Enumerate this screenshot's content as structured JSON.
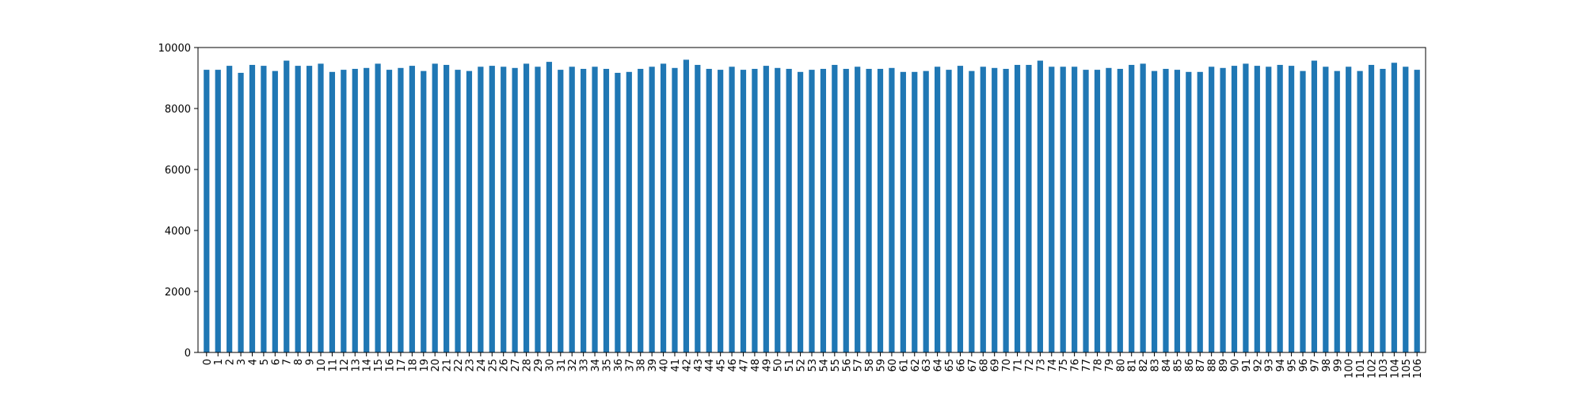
{
  "chart_data": {
    "type": "bar",
    "categories": [
      "0",
      "1",
      "2",
      "3",
      "4",
      "5",
      "6",
      "7",
      "8",
      "9",
      "10",
      "11",
      "12",
      "13",
      "14",
      "15",
      "16",
      "17",
      "18",
      "19",
      "20",
      "21",
      "22",
      "23",
      "24",
      "25",
      "26",
      "27",
      "28",
      "29",
      "30",
      "31",
      "32",
      "33",
      "34",
      "35",
      "36",
      "37",
      "38",
      "39",
      "40",
      "41",
      "42",
      "43",
      "44",
      "45",
      "46",
      "47",
      "48",
      "49",
      "50",
      "51",
      "52",
      "53",
      "54",
      "55",
      "56",
      "57",
      "58",
      "59",
      "60",
      "61",
      "62",
      "63",
      "64",
      "65",
      "66",
      "67",
      "68",
      "69",
      "70",
      "71",
      "72",
      "73",
      "74",
      "75",
      "76",
      "77",
      "78",
      "79",
      "80",
      "81",
      "82",
      "83",
      "84",
      "85",
      "86",
      "87",
      "88",
      "89",
      "90",
      "91",
      "92",
      "93",
      "94",
      "95",
      "96",
      "97",
      "98",
      "99",
      "100",
      "101",
      "102",
      "103",
      "104",
      "105",
      "106"
    ],
    "values": [
      9270,
      9270,
      9400,
      9170,
      9430,
      9400,
      9230,
      9570,
      9400,
      9400,
      9470,
      9200,
      9270,
      9300,
      9330,
      9470,
      9270,
      9330,
      9400,
      9230,
      9470,
      9430,
      9270,
      9230,
      9370,
      9400,
      9370,
      9330,
      9470,
      9370,
      9530,
      9270,
      9370,
      9300,
      9370,
      9300,
      9170,
      9200,
      9300,
      9370,
      9470,
      9330,
      9600,
      9430,
      9300,
      9270,
      9370,
      9270,
      9300,
      9400,
      9330,
      9300,
      9200,
      9270,
      9300,
      9430,
      9300,
      9370,
      9300,
      9300,
      9330,
      9200,
      9200,
      9230,
      9370,
      9270,
      9400,
      9230,
      9370,
      9330,
      9300,
      9430,
      9430,
      9570,
      9370,
      9370,
      9370,
      9270,
      9270,
      9330,
      9300,
      9430,
      9470,
      9230,
      9300,
      9270,
      9200,
      9200,
      9370,
      9330,
      9400,
      9470,
      9400,
      9370,
      9430,
      9400,
      9230,
      9570,
      9370,
      9230,
      9370,
      9230,
      9430,
      9300,
      9500,
      9370,
      9270
    ],
    "color": "#1f77b4",
    "ylim": [
      0,
      10000
    ],
    "yticks": [
      0,
      2000,
      4000,
      6000,
      8000,
      10000
    ],
    "grid": false
  }
}
